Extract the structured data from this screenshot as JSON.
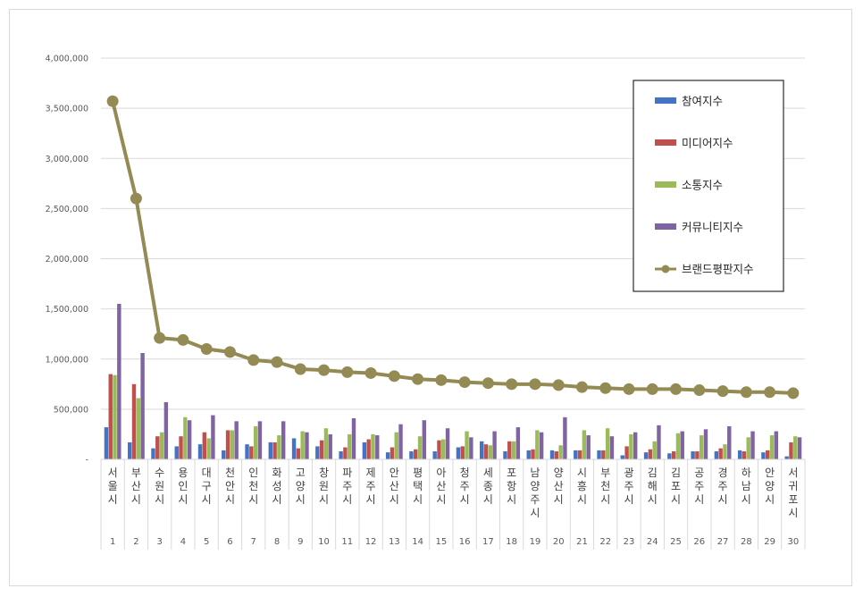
{
  "chart_data": {
    "type": "bar",
    "categories": [
      "서울시",
      "부산시",
      "수원시",
      "용인시",
      "대구시",
      "천안시",
      "인천시",
      "화성시",
      "고양시",
      "창원시",
      "파주시",
      "제주시",
      "안산시",
      "평택시",
      "아산시",
      "청주시",
      "세종시",
      "포항시",
      "남양주시",
      "양산시",
      "시흥시",
      "부천시",
      "광주시",
      "김해시",
      "김포시",
      "공주시",
      "경주시",
      "하남시",
      "안양시",
      "서귀포시"
    ],
    "ranks": [
      "1",
      "2",
      "3",
      "4",
      "5",
      "6",
      "7",
      "8",
      "9",
      "10",
      "11",
      "12",
      "13",
      "14",
      "15",
      "16",
      "17",
      "18",
      "19",
      "20",
      "21",
      "22",
      "23",
      "24",
      "25",
      "26",
      "27",
      "28",
      "29",
      "30"
    ],
    "ylim": [
      0,
      4000000
    ],
    "yticks": [
      {
        "value": 0,
        "label": "-"
      },
      {
        "value": 500000,
        "label": "500,000"
      },
      {
        "value": 1000000,
        "label": "1,000,000"
      },
      {
        "value": 1500000,
        "label": "1,500,000"
      },
      {
        "value": 2000000,
        "label": "2,000,000"
      },
      {
        "value": 2500000,
        "label": "2,500,000"
      },
      {
        "value": 3000000,
        "label": "3,000,000"
      },
      {
        "value": 3500000,
        "label": "3,500,000"
      },
      {
        "value": 4000000,
        "label": "4,000,000"
      }
    ],
    "grid": true,
    "legend_position": "right",
    "series": [
      {
        "name": "참여지수",
        "type": "bar",
        "color": "#4472c4",
        "values": [
          320000,
          170000,
          110000,
          130000,
          150000,
          90000,
          150000,
          170000,
          210000,
          130000,
          80000,
          170000,
          70000,
          80000,
          80000,
          120000,
          180000,
          80000,
          90000,
          90000,
          90000,
          90000,
          40000,
          70000,
          60000,
          80000,
          80000,
          90000,
          70000,
          30000
        ]
      },
      {
        "name": "미디어지수",
        "type": "bar",
        "color": "#c0504d",
        "values": [
          850000,
          750000,
          230000,
          230000,
          270000,
          290000,
          130000,
          170000,
          110000,
          190000,
          120000,
          200000,
          120000,
          100000,
          190000,
          130000,
          150000,
          180000,
          100000,
          80000,
          90000,
          90000,
          130000,
          100000,
          80000,
          80000,
          110000,
          80000,
          90000,
          170000
        ]
      },
      {
        "name": "소통지수",
        "type": "bar",
        "color": "#9bbb59",
        "values": [
          840000,
          610000,
          270000,
          420000,
          210000,
          290000,
          330000,
          240000,
          280000,
          310000,
          250000,
          250000,
          270000,
          230000,
          200000,
          280000,
          140000,
          180000,
          290000,
          140000,
          290000,
          310000,
          250000,
          180000,
          260000,
          240000,
          150000,
          220000,
          240000,
          230000
        ]
      },
      {
        "name": "커뮤니티지수",
        "type": "bar",
        "color": "#8064a2",
        "values": [
          1550000,
          1060000,
          570000,
          390000,
          440000,
          380000,
          380000,
          380000,
          270000,
          250000,
          410000,
          240000,
          350000,
          390000,
          310000,
          220000,
          280000,
          320000,
          270000,
          420000,
          240000,
          230000,
          270000,
          340000,
          280000,
          300000,
          330000,
          280000,
          280000,
          220000
        ]
      },
      {
        "name": "브랜드평판지수",
        "type": "line",
        "color": "#948a54",
        "values": [
          3570000,
          2600000,
          1210000,
          1190000,
          1100000,
          1070000,
          990000,
          970000,
          900000,
          890000,
          870000,
          860000,
          830000,
          800000,
          790000,
          770000,
          760000,
          750000,
          750000,
          740000,
          720000,
          710000,
          700000,
          700000,
          700000,
          690000,
          680000,
          670000,
          670000,
          660000
        ]
      }
    ]
  }
}
